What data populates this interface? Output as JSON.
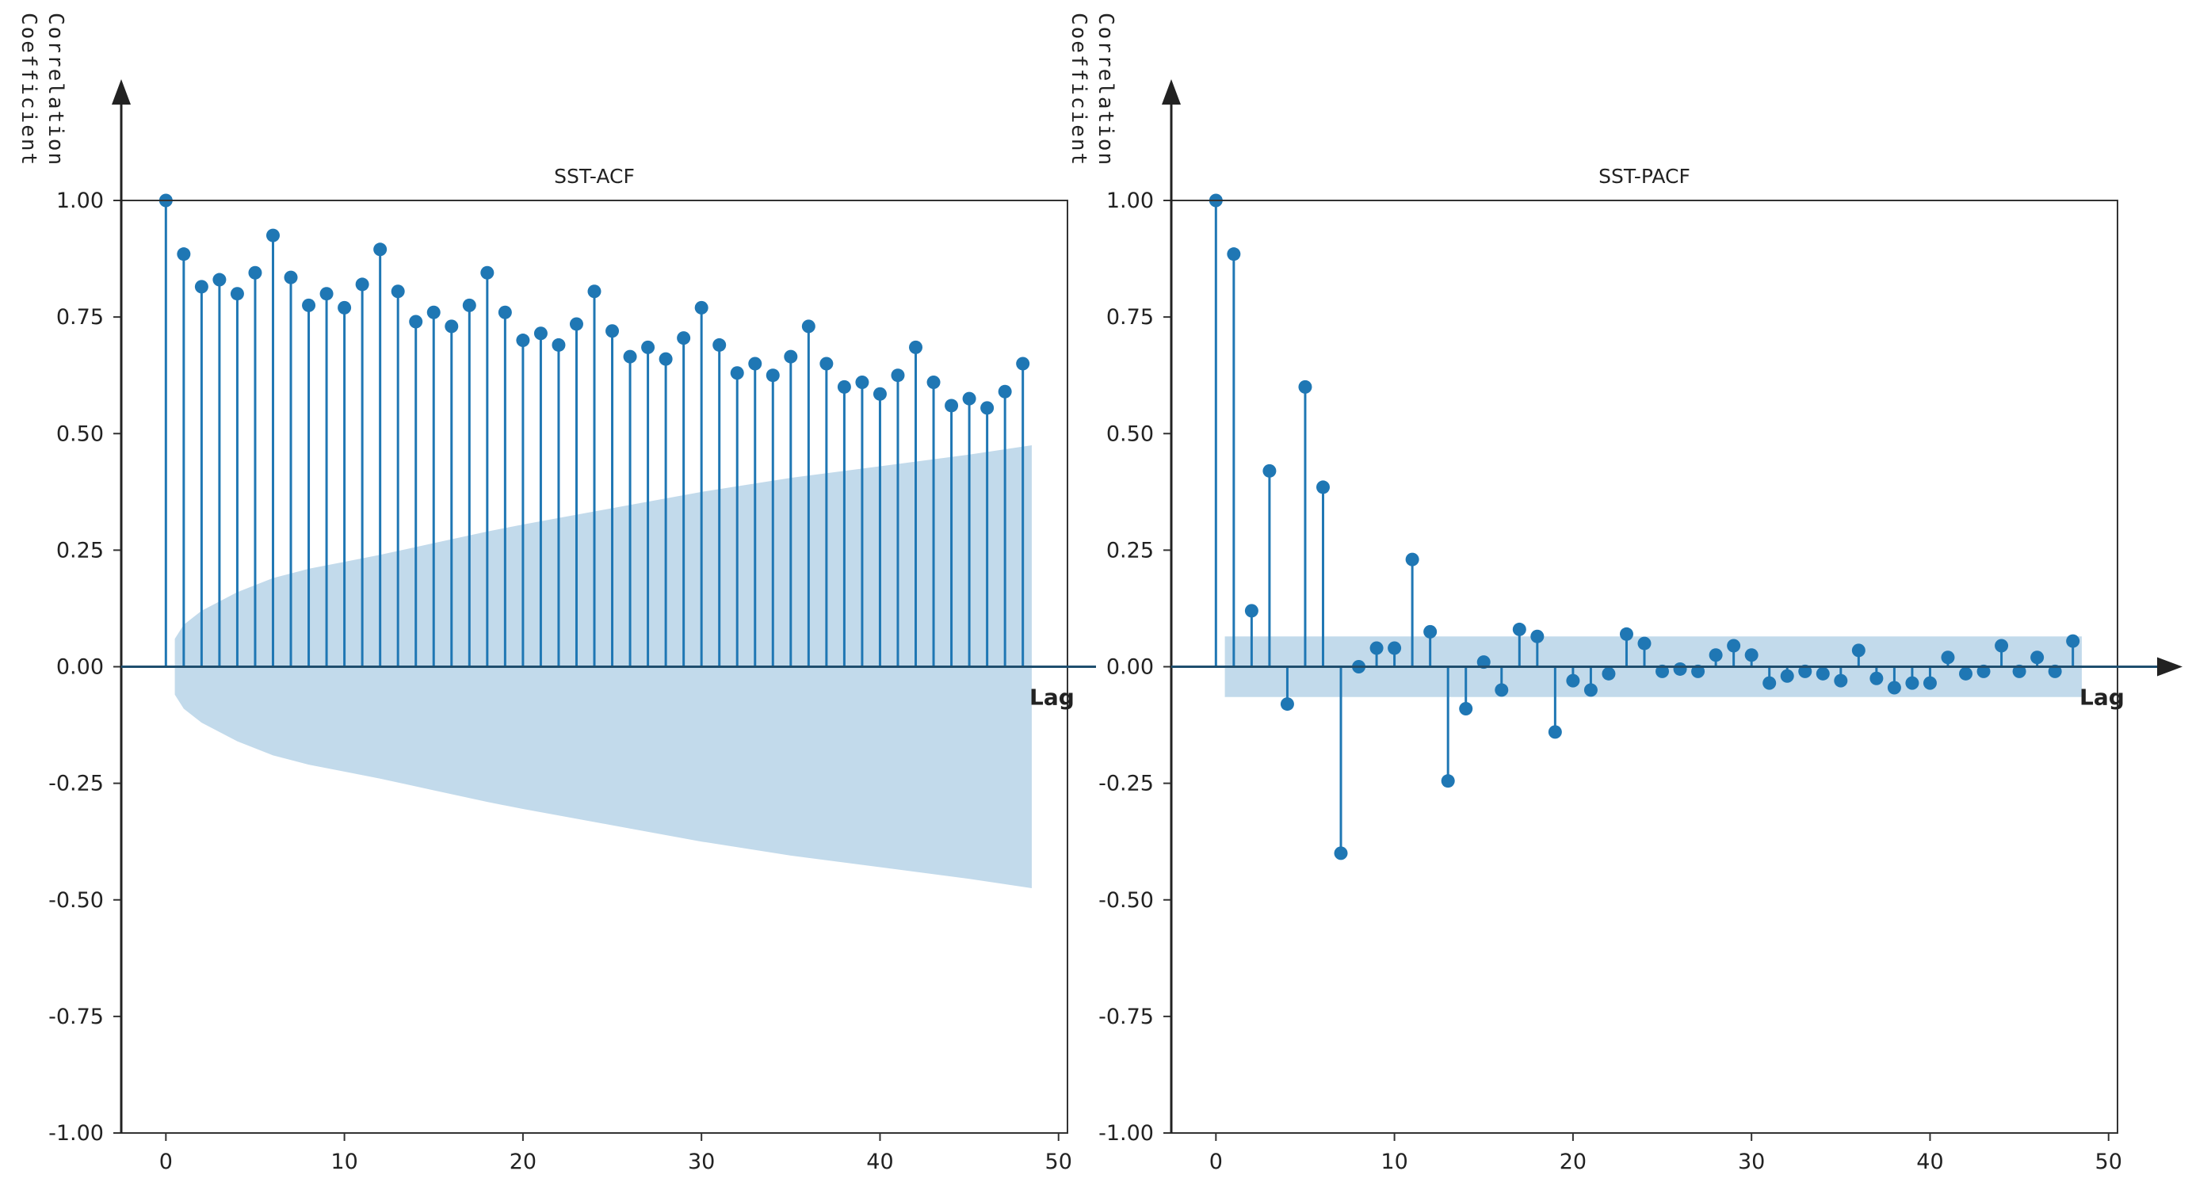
{
  "chart_data": [
    {
      "type": "stem",
      "title": "SST-ACF",
      "xlabel": "Lag",
      "ylabel_lines": [
        "Correlation",
        "Coefficient"
      ],
      "xlim": [
        -2.5,
        50.5
      ],
      "ylim": [
        -1.0,
        1.0
      ],
      "xticks": [
        0,
        10,
        20,
        30,
        40,
        50
      ],
      "yticks": [
        -1.0,
        -0.75,
        -0.5,
        -0.25,
        0.0,
        0.25,
        0.5,
        0.75,
        1.0
      ],
      "ytick_labels": [
        "-1.00",
        "-0.75",
        "-0.50",
        "-0.25",
        "0.00",
        "0.25",
        "0.50",
        "0.75",
        "1.00"
      ],
      "xtick_labels": [
        "0",
        "10",
        "20",
        "30",
        "40",
        "50"
      ],
      "lags": [
        0,
        1,
        2,
        3,
        4,
        5,
        6,
        7,
        8,
        9,
        10,
        11,
        12,
        13,
        14,
        15,
        16,
        17,
        18,
        19,
        20,
        21,
        22,
        23,
        24,
        25,
        26,
        27,
        28,
        29,
        30,
        31,
        32,
        33,
        34,
        35,
        36,
        37,
        38,
        39,
        40,
        41,
        42,
        43,
        44,
        45,
        46,
        47,
        48
      ],
      "values": [
        1.0,
        0.885,
        0.815,
        0.83,
        0.8,
        0.845,
        0.925,
        0.835,
        0.775,
        0.8,
        0.77,
        0.82,
        0.895,
        0.805,
        0.74,
        0.76,
        0.73,
        0.775,
        0.845,
        0.76,
        0.7,
        0.715,
        0.69,
        0.735,
        0.805,
        0.72,
        0.665,
        0.685,
        0.66,
        0.705,
        0.77,
        0.69,
        0.63,
        0.65,
        0.625,
        0.665,
        0.73,
        0.65,
        0.6,
        0.61,
        0.585,
        0.625,
        0.685,
        0.61,
        0.56,
        0.575,
        0.555,
        0.59,
        0.65
      ],
      "confidence_band": {
        "lags": [
          0.5,
          1,
          2,
          3,
          4,
          5,
          6,
          8,
          10,
          12,
          15,
          18,
          20,
          25,
          30,
          35,
          40,
          45,
          48.5
        ],
        "upper": [
          0.06,
          0.09,
          0.12,
          0.14,
          0.16,
          0.175,
          0.19,
          0.21,
          0.225,
          0.24,
          0.265,
          0.29,
          0.305,
          0.34,
          0.375,
          0.405,
          0.43,
          0.455,
          0.475
        ]
      },
      "color": "#1f77b4",
      "band_color": "#1f77b4"
    },
    {
      "type": "stem",
      "title": "SST-PACF",
      "xlabel": "Lag",
      "ylabel_lines": [
        "Correlation",
        "Coefficient"
      ],
      "xlim": [
        -2.5,
        50.5
      ],
      "ylim": [
        -1.0,
        1.0
      ],
      "xticks": [
        0,
        10,
        20,
        30,
        40,
        50
      ],
      "yticks": [
        -1.0,
        -0.75,
        -0.5,
        -0.25,
        0.0,
        0.25,
        0.5,
        0.75,
        1.0
      ],
      "ytick_labels": [
        "-1.00",
        "-0.75",
        "-0.50",
        "-0.25",
        "0.00",
        "0.25",
        "0.50",
        "0.75",
        "1.00"
      ],
      "xtick_labels": [
        "0",
        "10",
        "20",
        "30",
        "40",
        "50"
      ],
      "lags": [
        0,
        1,
        2,
        3,
        4,
        5,
        6,
        7,
        8,
        9,
        10,
        11,
        12,
        13,
        14,
        15,
        16,
        17,
        18,
        19,
        20,
        21,
        22,
        23,
        24,
        25,
        26,
        27,
        28,
        29,
        30,
        31,
        32,
        33,
        34,
        35,
        36,
        37,
        38,
        39,
        40,
        41,
        42,
        43,
        44,
        45,
        46,
        47,
        48
      ],
      "values": [
        1.0,
        0.885,
        0.12,
        0.42,
        -0.08,
        0.6,
        0.385,
        -0.4,
        0.0,
        0.04,
        0.04,
        0.23,
        0.075,
        -0.245,
        -0.09,
        0.01,
        -0.05,
        0.08,
        0.065,
        -0.14,
        -0.03,
        -0.05,
        -0.015,
        0.07,
        0.05,
        -0.01,
        -0.005,
        -0.01,
        0.025,
        0.045,
        0.025,
        -0.035,
        -0.02,
        -0.01,
        -0.015,
        -0.03,
        0.035,
        -0.025,
        -0.045,
        -0.035,
        -0.035,
        0.02,
        -0.015,
        -0.01,
        0.045,
        -0.01,
        0.02,
        -0.01,
        0.055
      ],
      "confidence_band": {
        "lags": [
          0.5,
          48.5
        ],
        "upper": [
          0.065,
          0.065
        ]
      },
      "color": "#1f77b4",
      "band_color": "#1f77b4"
    }
  ]
}
